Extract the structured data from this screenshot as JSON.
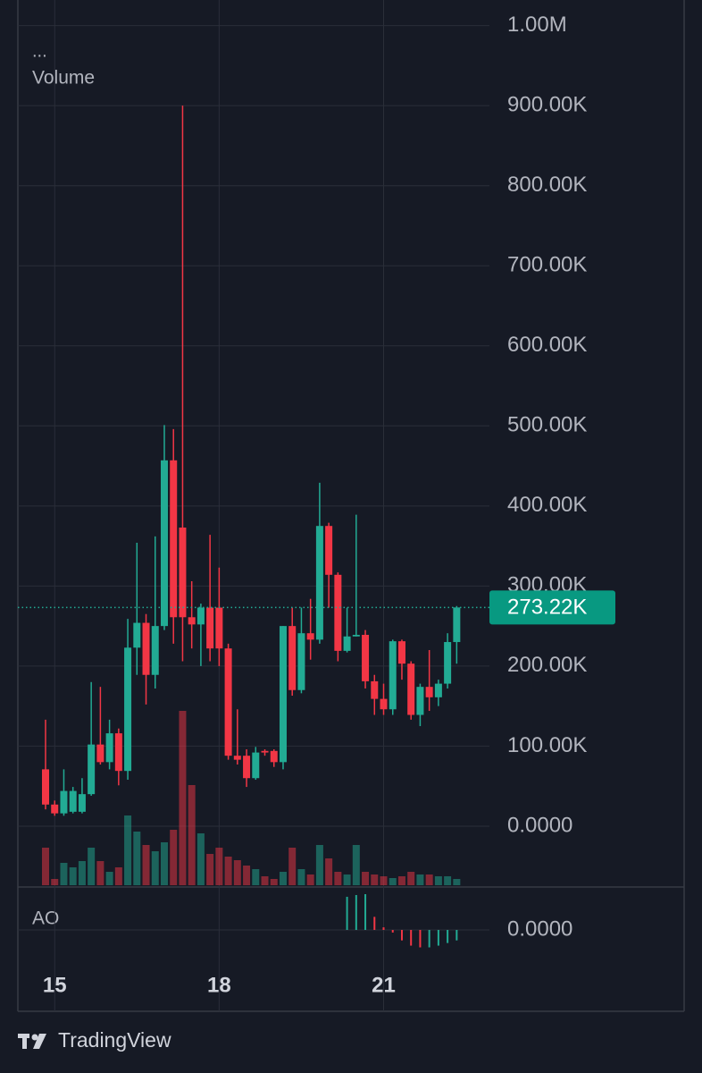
{
  "chart_data": {
    "type": "candlestick",
    "indicator_dots": "...",
    "volume_label": "Volume",
    "ao_label": "AO",
    "brand": "TradingView",
    "categories": [
      null,
      "15",
      null,
      null,
      null,
      null,
      null,
      null,
      null,
      null,
      null,
      null,
      null,
      null,
      null,
      null,
      null,
      null,
      null,
      "18",
      null,
      null,
      null,
      null,
      null,
      null,
      null,
      null,
      null,
      null,
      null,
      null,
      null,
      null,
      null,
      null,
      null,
      "21",
      null,
      null,
      null,
      null,
      null,
      null,
      null,
      null
    ],
    "open": [
      71000,
      27000,
      16000,
      18000,
      18000,
      40000,
      102000,
      80000,
      116000,
      69000,
      223000,
      254000,
      189000,
      250000,
      457000,
      373000,
      261000,
      252000,
      273000,
      273000,
      222000,
      88000,
      88000,
      60000,
      94000,
      94000,
      80000,
      250000,
      170000,
      241000,
      233000,
      375000,
      314000,
      219000,
      237000,
      239000,
      181000,
      159000,
      146000,
      231000,
      203000,
      139000,
      174000,
      161000,
      178000,
      230000
    ],
    "high": [
      133000,
      32000,
      71000,
      49000,
      60000,
      180000,
      174000,
      133000,
      122000,
      259000,
      354000,
      265000,
      362000,
      501000,
      496000,
      900000,
      306000,
      278000,
      364000,
      323000,
      228000,
      146000,
      96000,
      99000,
      96000,
      96000,
      250000,
      273000,
      273000,
      284000,
      429000,
      379000,
      317000,
      273000,
      389000,
      245000,
      189000,
      178000,
      233000,
      233000,
      206000,
      178000,
      220000,
      183000,
      241000,
      275000
    ],
    "low": [
      21000,
      13000,
      13000,
      16000,
      16000,
      38000,
      77000,
      71000,
      51000,
      58000,
      189000,
      152000,
      172000,
      245000,
      228000,
      206000,
      222000,
      200000,
      206000,
      200000,
      83000,
      77000,
      49000,
      58000,
      88000,
      74000,
      71000,
      163000,
      166000,
      208000,
      228000,
      273000,
      206000,
      217000,
      237000,
      172000,
      139000,
      139000,
      139000,
      183000,
      133000,
      125000,
      144000,
      150000,
      172000,
      203000
    ],
    "close": [
      27000,
      16000,
      44000,
      44000,
      40000,
      102000,
      80000,
      116000,
      69000,
      223000,
      254000,
      189000,
      250000,
      457000,
      261000,
      261000,
      252000,
      273000,
      222000,
      222000,
      88000,
      83000,
      60000,
      92000,
      92000,
      80000,
      250000,
      170000,
      241000,
      233000,
      375000,
      314000,
      219000,
      237000,
      239000,
      181000,
      159000,
      146000,
      231000,
      203000,
      139000,
      174000,
      161000,
      178000,
      230000,
      273220
    ],
    "volume": [
      42,
      7,
      25,
      20,
      27,
      42,
      27,
      15,
      20,
      78,
      60,
      45,
      38,
      48,
      62,
      195,
      112,
      58,
      35,
      42,
      32,
      28,
      22,
      18,
      10,
      7,
      15,
      42,
      18,
      12,
      45,
      30,
      15,
      12,
      45,
      15,
      12,
      10,
      8,
      10,
      15,
      12,
      12,
      10,
      10,
      7
    ],
    "ao": [
      null,
      null,
      null,
      null,
      null,
      null,
      null,
      null,
      null,
      null,
      null,
      null,
      null,
      null,
      null,
      null,
      null,
      null,
      null,
      null,
      null,
      null,
      null,
      null,
      null,
      null,
      null,
      null,
      null,
      null,
      null,
      null,
      null,
      38,
      40,
      41,
      15,
      3,
      -3,
      -12,
      -18,
      -20,
      -20,
      -18,
      -15,
      -12
    ],
    "up_color": "#22ab94",
    "down_color": "#f23645",
    "ylim": [
      -76000,
      1032000
    ],
    "yticks": [
      {
        "value": 0,
        "label": "0.0000"
      },
      {
        "value": 100000,
        "label": "100.00K"
      },
      {
        "value": 200000,
        "label": "200.00K"
      },
      {
        "value": 300000,
        "label": "300.00K"
      },
      {
        "value": 400000,
        "label": "400.00K"
      },
      {
        "value": 500000,
        "label": "500.00K"
      },
      {
        "value": 600000,
        "label": "600.00K"
      },
      {
        "value": 700000,
        "label": "700.00K"
      },
      {
        "value": 800000,
        "label": "800.00K"
      },
      {
        "value": 900000,
        "label": "900.00K"
      },
      {
        "value": 1000000,
        "label": "1.00M"
      }
    ],
    "ao_ticks": [
      {
        "value": 0,
        "label": "0.0000"
      }
    ],
    "last_price": {
      "value": 273220,
      "label": "273.22K"
    },
    "grid": true
  }
}
